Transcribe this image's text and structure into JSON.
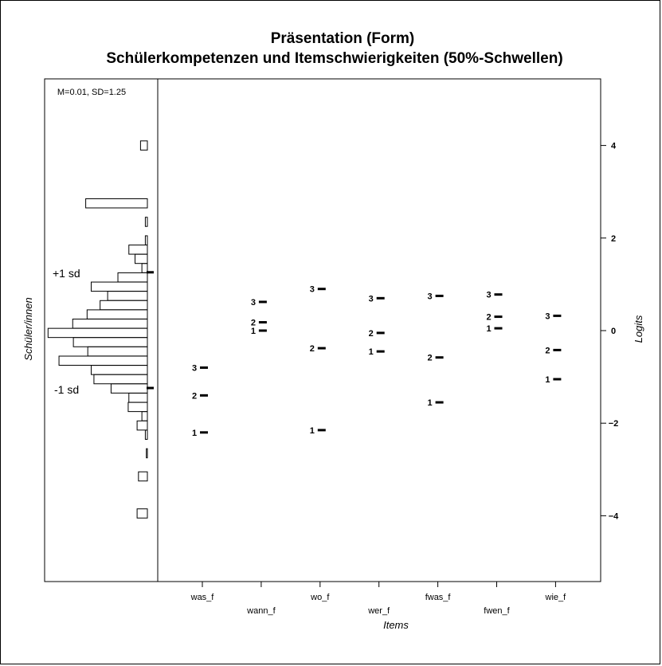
{
  "chart_data": {
    "type": "scatter",
    "title": "Präsentation (Form)",
    "subtitle": "Schülerkompetenzen und Itemschwierigkeiten (50%-Schwellen)",
    "xlabel": "Items",
    "ylabel_right": "Logits",
    "ylabel_left": "Schüler/innen",
    "person_stats": "M=0.01, SD=1.25",
    "sd_labels": {
      "plus": "+1 sd",
      "minus": "-1 sd"
    },
    "sd_values": {
      "plus": 1.26,
      "minus": -1.24
    },
    "ylim": [
      -5.3,
      5.3
    ],
    "yticks": [
      -4,
      -2,
      0,
      2,
      4
    ],
    "categories": [
      "was_f",
      "wann_f",
      "wo_f",
      "wer_f",
      "fwas_f",
      "fwen_f",
      "wie_f"
    ],
    "thresholds": [
      {
        "item": "was_f",
        "values": [
          -2.2,
          -1.4,
          -0.8
        ],
        "labels": [
          "1",
          "2",
          "3"
        ]
      },
      {
        "item": "wann_f",
        "values": [
          0.0,
          0.18,
          0.62
        ],
        "labels": [
          "1",
          "2",
          "3"
        ]
      },
      {
        "item": "wo_f",
        "values": [
          -2.15,
          -0.38,
          0.9
        ],
        "labels": [
          "1",
          "2",
          "3"
        ]
      },
      {
        "item": "wer_f",
        "values": [
          -0.45,
          -0.05,
          0.7
        ],
        "labels": [
          "1",
          "2",
          "3"
        ]
      },
      {
        "item": "fwas_f",
        "values": [
          -1.55,
          -0.58,
          0.75
        ],
        "labels": [
          "1",
          "2",
          "3"
        ]
      },
      {
        "item": "fwen_f",
        "values": [
          0.05,
          0.3,
          0.78
        ],
        "labels": [
          "1",
          "2",
          "3"
        ]
      },
      {
        "item": "wie_f",
        "values": [
          -1.05,
          -0.42,
          0.32
        ],
        "labels": [
          "1",
          "2",
          "3"
        ]
      }
    ],
    "person_histogram": [
      {
        "y": 4.0,
        "count": 1
      },
      {
        "y": 2.75,
        "count": 9
      },
      {
        "y": 2.35,
        "count": 0.3
      },
      {
        "y": 1.95,
        "count": 0.3
      },
      {
        "y": 1.75,
        "count": 2.7
      },
      {
        "y": 1.55,
        "count": 1.8
      },
      {
        "y": 1.35,
        "count": 0.8
      },
      {
        "y": 1.15,
        "count": 4.3
      },
      {
        "y": 0.95,
        "count": 8.2
      },
      {
        "y": 0.75,
        "count": 5.8
      },
      {
        "y": 0.55,
        "count": 6.9
      },
      {
        "y": 0.35,
        "count": 8.8
      },
      {
        "y": 0.15,
        "count": 10.9
      },
      {
        "y": -0.05,
        "count": 14.5
      },
      {
        "y": -0.25,
        "count": 10.8
      },
      {
        "y": -0.45,
        "count": 8.7
      },
      {
        "y": -0.65,
        "count": 12.9
      },
      {
        "y": -0.85,
        "count": 8.2
      },
      {
        "y": -1.05,
        "count": 7.8
      },
      {
        "y": -1.25,
        "count": 5.3
      },
      {
        "y": -1.45,
        "count": 2.7
      },
      {
        "y": -1.65,
        "count": 2.8
      },
      {
        "y": -1.85,
        "count": 0.8
      },
      {
        "y": -2.05,
        "count": 1.5
      },
      {
        "y": -2.25,
        "count": 0.3
      },
      {
        "y": -2.65,
        "count": 0.15
      },
      {
        "y": -3.15,
        "count": 1.3
      },
      {
        "y": -3.95,
        "count": 1.5
      }
    ]
  }
}
